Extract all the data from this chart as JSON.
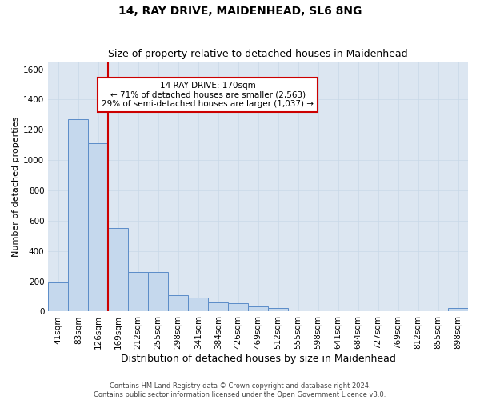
{
  "title": "14, RAY DRIVE, MAIDENHEAD, SL6 8NG",
  "subtitle": "Size of property relative to detached houses in Maidenhead",
  "xlabel": "Distribution of detached houses by size in Maidenhead",
  "ylabel": "Number of detached properties",
  "categories": [
    "41sqm",
    "83sqm",
    "126sqm",
    "169sqm",
    "212sqm",
    "255sqm",
    "298sqm",
    "341sqm",
    "384sqm",
    "426sqm",
    "469sqm",
    "512sqm",
    "555sqm",
    "598sqm",
    "641sqm",
    "684sqm",
    "727sqm",
    "769sqm",
    "812sqm",
    "855sqm",
    "898sqm"
  ],
  "values": [
    190,
    1270,
    1110,
    550,
    260,
    260,
    110,
    90,
    60,
    55,
    35,
    25,
    0,
    0,
    0,
    0,
    0,
    0,
    0,
    0,
    25
  ],
  "bar_color": "#c5d8ed",
  "bar_edge_color": "#5b8cc8",
  "annotation_text": "14 RAY DRIVE: 170sqm\n← 71% of detached houses are smaller (2,563)\n29% of semi-detached houses are larger (1,037) →",
  "annotation_box_color": "#ffffff",
  "annotation_box_edge_color": "#cc0000",
  "property_line_color": "#cc0000",
  "property_line_x": 2.5,
  "ylim": [
    0,
    1650
  ],
  "yticks": [
    0,
    200,
    400,
    600,
    800,
    1000,
    1200,
    1400,
    1600
  ],
  "grid_color": "#c8d8e8",
  "background_color": "#dce6f1",
  "footer_line1": "Contains HM Land Registry data © Crown copyright and database right 2024.",
  "footer_line2": "Contains public sector information licensed under the Open Government Licence v3.0.",
  "title_fontsize": 10,
  "subtitle_fontsize": 9,
  "xlabel_fontsize": 9,
  "ylabel_fontsize": 8,
  "tick_fontsize": 7.5,
  "ann_fontsize": 7.5,
  "footer_fontsize": 6
}
